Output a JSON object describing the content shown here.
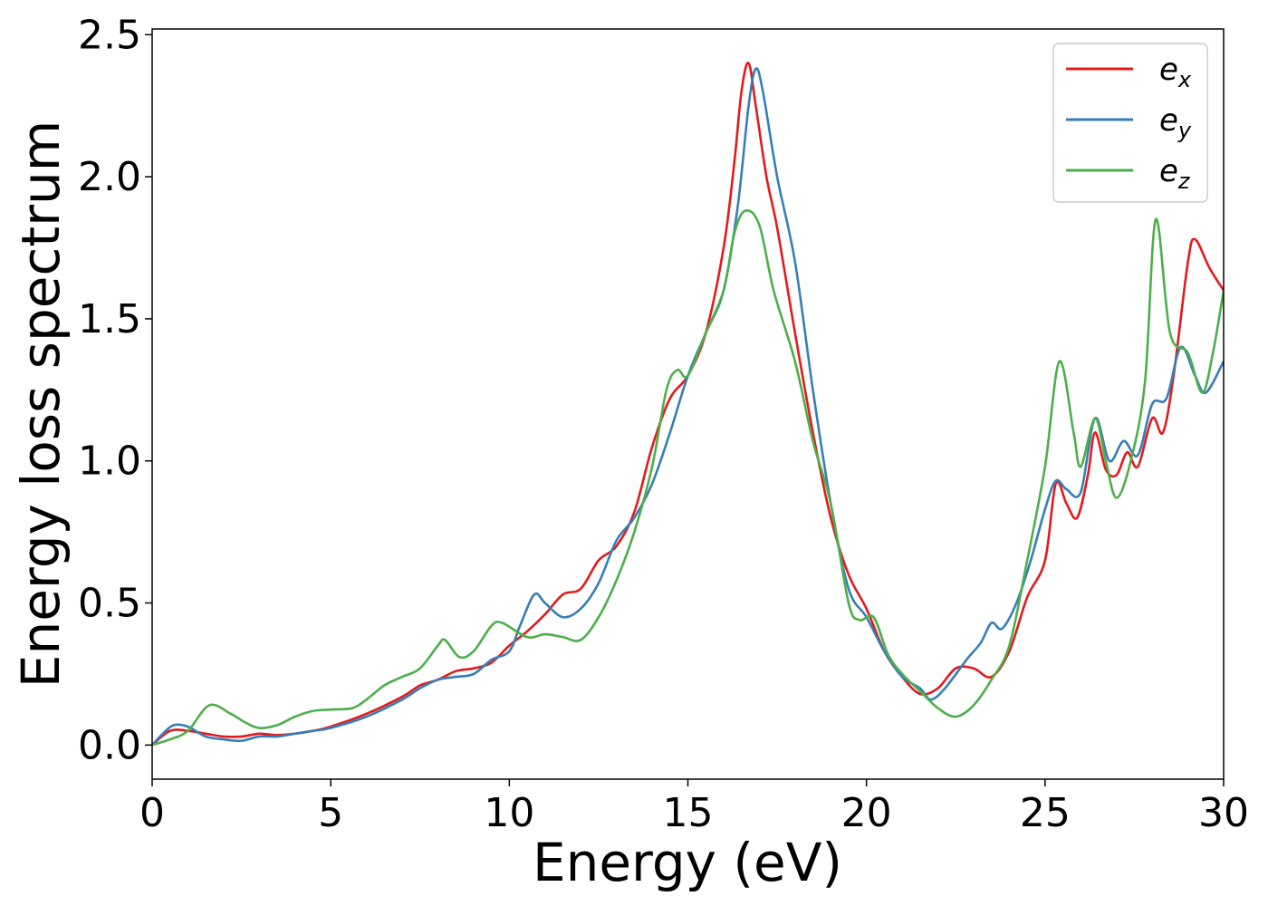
{
  "chart_data": {
    "type": "line",
    "title": "",
    "xlabel": "Energy (eV)",
    "ylabel": "Energy loss spectrum",
    "xlim": [
      0,
      30
    ],
    "ylim": [
      -0.12,
      2.52
    ],
    "xticks": [
      0,
      5,
      10,
      15,
      20,
      25,
      30
    ],
    "xtick_labels": [
      "0",
      "5",
      "10",
      "15",
      "20",
      "25",
      "30"
    ],
    "yticks": [
      0.0,
      0.5,
      1.0,
      1.5,
      2.0,
      2.5
    ],
    "ytick_labels": [
      "0.0",
      "0.5",
      "1.0",
      "1.5",
      "2.0",
      "2.5"
    ],
    "grid": false,
    "legend_position": "top-right",
    "series": [
      {
        "name": "e_x",
        "legend_base": "e",
        "legend_sub": "x",
        "color": "#e41a1c",
        "points": [
          [
            0,
            0.0
          ],
          [
            0.5,
            0.05
          ],
          [
            1,
            0.05
          ],
          [
            1.5,
            0.04
          ],
          [
            2,
            0.03
          ],
          [
            2.5,
            0.03
          ],
          [
            3,
            0.04
          ],
          [
            3.5,
            0.035
          ],
          [
            4,
            0.04
          ],
          [
            4.5,
            0.05
          ],
          [
            5,
            0.065
          ],
          [
            6,
            0.11
          ],
          [
            7,
            0.17
          ],
          [
            7.5,
            0.21
          ],
          [
            8,
            0.23
          ],
          [
            8.5,
            0.26
          ],
          [
            9,
            0.27
          ],
          [
            9.5,
            0.29
          ],
          [
            10,
            0.35
          ],
          [
            10.5,
            0.4
          ],
          [
            11,
            0.46
          ],
          [
            11.5,
            0.53
          ],
          [
            12,
            0.55
          ],
          [
            12.5,
            0.65
          ],
          [
            13,
            0.7
          ],
          [
            13.5,
            0.82
          ],
          [
            14,
            1.05
          ],
          [
            14.5,
            1.22
          ],
          [
            15,
            1.3
          ],
          [
            15.5,
            1.45
          ],
          [
            16,
            1.75
          ],
          [
            16.3,
            2.05
          ],
          [
            16.5,
            2.3
          ],
          [
            16.7,
            2.4
          ],
          [
            16.9,
            2.25
          ],
          [
            17.2,
            2.0
          ],
          [
            17.5,
            1.82
          ],
          [
            18,
            1.45
          ],
          [
            18.5,
            1.1
          ],
          [
            19,
            0.8
          ],
          [
            19.5,
            0.6
          ],
          [
            20,
            0.48
          ],
          [
            20.5,
            0.33
          ],
          [
            21,
            0.24
          ],
          [
            21.5,
            0.18
          ],
          [
            22,
            0.2
          ],
          [
            22.5,
            0.27
          ],
          [
            23,
            0.27
          ],
          [
            23.5,
            0.24
          ],
          [
            24,
            0.33
          ],
          [
            24.5,
            0.52
          ],
          [
            25,
            0.65
          ],
          [
            25.3,
            0.92
          ],
          [
            25.6,
            0.85
          ],
          [
            25.9,
            0.8
          ],
          [
            26.2,
            0.95
          ],
          [
            26.4,
            1.1
          ],
          [
            26.7,
            0.97
          ],
          [
            27,
            0.95
          ],
          [
            27.3,
            1.03
          ],
          [
            27.6,
            0.98
          ],
          [
            28,
            1.15
          ],
          [
            28.3,
            1.1
          ],
          [
            28.6,
            1.3
          ],
          [
            29,
            1.7
          ],
          [
            29.2,
            1.78
          ],
          [
            29.6,
            1.68
          ],
          [
            30,
            1.6
          ]
        ]
      },
      {
        "name": "e_y",
        "legend_base": "e",
        "legend_sub": "y",
        "color": "#377eb8",
        "points": [
          [
            0,
            0.0
          ],
          [
            0.3,
            0.04
          ],
          [
            0.6,
            0.07
          ],
          [
            1,
            0.065
          ],
          [
            1.5,
            0.03
          ],
          [
            2,
            0.02
          ],
          [
            2.5,
            0.015
          ],
          [
            3,
            0.03
          ],
          [
            3.5,
            0.03
          ],
          [
            4,
            0.04
          ],
          [
            4.5,
            0.05
          ],
          [
            5,
            0.06
          ],
          [
            6,
            0.1
          ],
          [
            7,
            0.16
          ],
          [
            7.5,
            0.2
          ],
          [
            8,
            0.23
          ],
          [
            8.5,
            0.24
          ],
          [
            9,
            0.25
          ],
          [
            9.5,
            0.3
          ],
          [
            10,
            0.33
          ],
          [
            10.3,
            0.42
          ],
          [
            10.7,
            0.53
          ],
          [
            11,
            0.5
          ],
          [
            11.5,
            0.45
          ],
          [
            12,
            0.48
          ],
          [
            12.5,
            0.57
          ],
          [
            13,
            0.72
          ],
          [
            13.5,
            0.8
          ],
          [
            14,
            0.92
          ],
          [
            14.5,
            1.1
          ],
          [
            15,
            1.3
          ],
          [
            15.5,
            1.45
          ],
          [
            16,
            1.6
          ],
          [
            16.4,
            1.9
          ],
          [
            16.7,
            2.25
          ],
          [
            16.9,
            2.38
          ],
          [
            17.1,
            2.3
          ],
          [
            17.5,
            2.0
          ],
          [
            18,
            1.7
          ],
          [
            18.5,
            1.25
          ],
          [
            19,
            0.85
          ],
          [
            19.5,
            0.55
          ],
          [
            20,
            0.45
          ],
          [
            20.5,
            0.33
          ],
          [
            21,
            0.24
          ],
          [
            21.5,
            0.2
          ],
          [
            21.8,
            0.16
          ],
          [
            22.2,
            0.2
          ],
          [
            22.8,
            0.3
          ],
          [
            23.2,
            0.36
          ],
          [
            23.5,
            0.43
          ],
          [
            23.8,
            0.41
          ],
          [
            24.2,
            0.5
          ],
          [
            24.6,
            0.65
          ],
          [
            25,
            0.83
          ],
          [
            25.3,
            0.93
          ],
          [
            25.6,
            0.9
          ],
          [
            26,
            0.89
          ],
          [
            26.4,
            1.15
          ],
          [
            26.8,
            1.0
          ],
          [
            27.2,
            1.07
          ],
          [
            27.6,
            1.02
          ],
          [
            28,
            1.2
          ],
          [
            28.4,
            1.22
          ],
          [
            28.8,
            1.4
          ],
          [
            29.2,
            1.3
          ],
          [
            29.5,
            1.24
          ],
          [
            30,
            1.35
          ]
        ]
      },
      {
        "name": "e_z",
        "legend_base": "e",
        "legend_sub": "z",
        "color": "#4daf4a",
        "points": [
          [
            0,
            0.0
          ],
          [
            0.5,
            0.02
          ],
          [
            1,
            0.05
          ],
          [
            1.6,
            0.14
          ],
          [
            2.2,
            0.11
          ],
          [
            2.6,
            0.08
          ],
          [
            3,
            0.06
          ],
          [
            3.5,
            0.07
          ],
          [
            4,
            0.1
          ],
          [
            4.5,
            0.12
          ],
          [
            5,
            0.125
          ],
          [
            5.6,
            0.13
          ],
          [
            6,
            0.16
          ],
          [
            6.5,
            0.21
          ],
          [
            7,
            0.24
          ],
          [
            7.5,
            0.27
          ],
          [
            8,
            0.35
          ],
          [
            8.2,
            0.37
          ],
          [
            8.6,
            0.31
          ],
          [
            9,
            0.33
          ],
          [
            9.5,
            0.42
          ],
          [
            9.8,
            0.43
          ],
          [
            10.5,
            0.38
          ],
          [
            11,
            0.39
          ],
          [
            11.5,
            0.38
          ],
          [
            12,
            0.37
          ],
          [
            12.5,
            0.45
          ],
          [
            13,
            0.58
          ],
          [
            13.5,
            0.75
          ],
          [
            14,
            0.98
          ],
          [
            14.4,
            1.25
          ],
          [
            14.7,
            1.32
          ],
          [
            15,
            1.3
          ],
          [
            15.5,
            1.45
          ],
          [
            16,
            1.6
          ],
          [
            16.3,
            1.8
          ],
          [
            16.6,
            1.88
          ],
          [
            17,
            1.83
          ],
          [
            17.4,
            1.6
          ],
          [
            18,
            1.35
          ],
          [
            18.5,
            1.07
          ],
          [
            19,
            0.85
          ],
          [
            19.5,
            0.5
          ],
          [
            19.8,
            0.44
          ],
          [
            20.2,
            0.45
          ],
          [
            20.6,
            0.32
          ],
          [
            21,
            0.25
          ],
          [
            21.5,
            0.19
          ],
          [
            22,
            0.13
          ],
          [
            22.5,
            0.1
          ],
          [
            23,
            0.14
          ],
          [
            23.5,
            0.23
          ],
          [
            24,
            0.35
          ],
          [
            24.5,
            0.65
          ],
          [
            25,
            0.98
          ],
          [
            25.4,
            1.35
          ],
          [
            25.8,
            1.1
          ],
          [
            26,
            0.98
          ],
          [
            26.4,
            1.15
          ],
          [
            26.7,
            1.0
          ],
          [
            27,
            0.87
          ],
          [
            27.4,
            1.0
          ],
          [
            27.8,
            1.28
          ],
          [
            28.1,
            1.85
          ],
          [
            28.5,
            1.45
          ],
          [
            29,
            1.38
          ],
          [
            29.4,
            1.24
          ],
          [
            29.7,
            1.38
          ],
          [
            30,
            1.6
          ]
        ]
      }
    ]
  }
}
